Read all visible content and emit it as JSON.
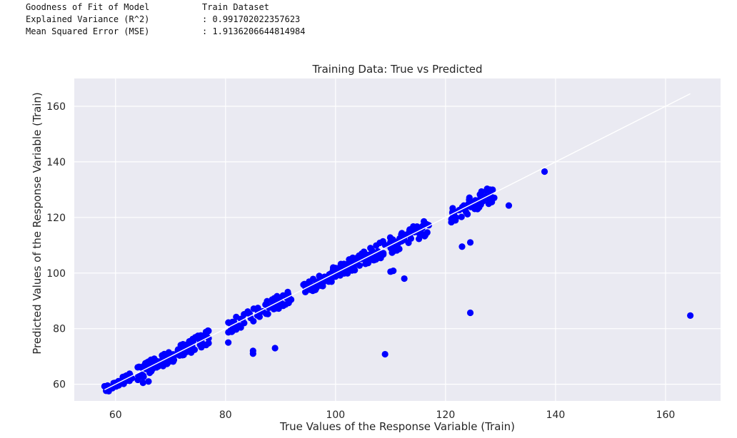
{
  "stats": {
    "header_left": "Goodness of Fit of Model",
    "header_right": "Train Dataset",
    "rows": [
      {
        "label": "Explained Variance (R^2)",
        "value": ": 0.991702022357623"
      },
      {
        "label": "Mean Squared Error (MSE)",
        "value": ": 1.9136206644814984"
      }
    ]
  },
  "chart_data": {
    "type": "scatter",
    "title": "Training Data: True vs Predicted",
    "xlabel": "True Values of the Response Variable (Train)",
    "ylabel": "Predicted Values of the Response Variable (Train)",
    "xlim": [
      52.5,
      170
    ],
    "ylim": [
      54,
      170
    ],
    "xticks": [
      60,
      80,
      100,
      120,
      140,
      160
    ],
    "yticks": [
      60,
      80,
      100,
      120,
      140,
      160
    ],
    "grid": true,
    "point_color": "#0000ff",
    "line_color": "#ffffff",
    "background_color": "#eaeaf2",
    "reference_line": {
      "x": [
        58,
        164.5
      ],
      "y": [
        58,
        164.5
      ]
    },
    "clusters": [
      {
        "x": [
          58,
          63
        ],
        "offset": [
          -1.5,
          1.5
        ],
        "n": 45
      },
      {
        "x": [
          64,
          77
        ],
        "offset": [
          -2.5,
          2.5
        ],
        "n": 110
      },
      {
        "x": [
          80.5,
          92
        ],
        "offset": [
          -2.5,
          2.5
        ],
        "n": 70
      },
      {
        "x": [
          94,
          106
        ],
        "offset": [
          -2.5,
          2.5
        ],
        "n": 110
      },
      {
        "x": [
          106,
          117
        ],
        "offset": [
          -3,
          3
        ],
        "n": 95
      },
      {
        "x": [
          121,
          129
        ],
        "offset": [
          -3,
          3
        ],
        "n": 55
      }
    ],
    "outliers": [
      {
        "x": 65,
        "y": 60.5
      },
      {
        "x": 66,
        "y": 61
      },
      {
        "x": 80.5,
        "y": 75
      },
      {
        "x": 85,
        "y": 72
      },
      {
        "x": 85,
        "y": 71
      },
      {
        "x": 89,
        "y": 73
      },
      {
        "x": 109,
        "y": 70.8
      },
      {
        "x": 110,
        "y": 100.5
      },
      {
        "x": 110.5,
        "y": 100.8
      },
      {
        "x": 112.5,
        "y": 98
      },
      {
        "x": 121.5,
        "y": 120.5
      },
      {
        "x": 123,
        "y": 109.5
      },
      {
        "x": 124.5,
        "y": 111
      },
      {
        "x": 124.5,
        "y": 85.7
      },
      {
        "x": 131.5,
        "y": 124.3
      },
      {
        "x": 138,
        "y": 136.5
      },
      {
        "x": 164.5,
        "y": 84.7
      }
    ]
  }
}
